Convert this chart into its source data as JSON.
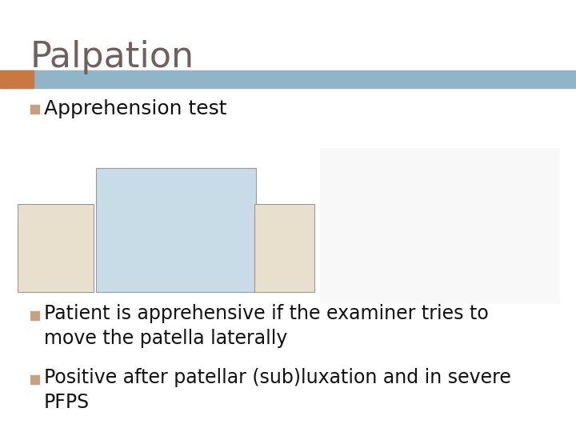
{
  "title": "Palpation",
  "title_color": "#706060",
  "title_fontsize": 32,
  "title_bold": false,
  "header_bar_color": "#90b4c8",
  "header_bar_accent_color": "#c87840",
  "bullet1_header": "Apprehension test",
  "bullet1_fontsize": 18,
  "bullet1_color": "#111111",
  "bullet_marker_color": "#c8a080",
  "bullet2_text": "Patient is apprehensive if the examiner tries to\nmove the patella laterally",
  "bullet3_text": "Positive after patellar (sub)luxation and in severe\nPFPS",
  "sub_bullet_fontsize": 17,
  "sub_bullet_color": "#111111",
  "background_color": "#ffffff"
}
